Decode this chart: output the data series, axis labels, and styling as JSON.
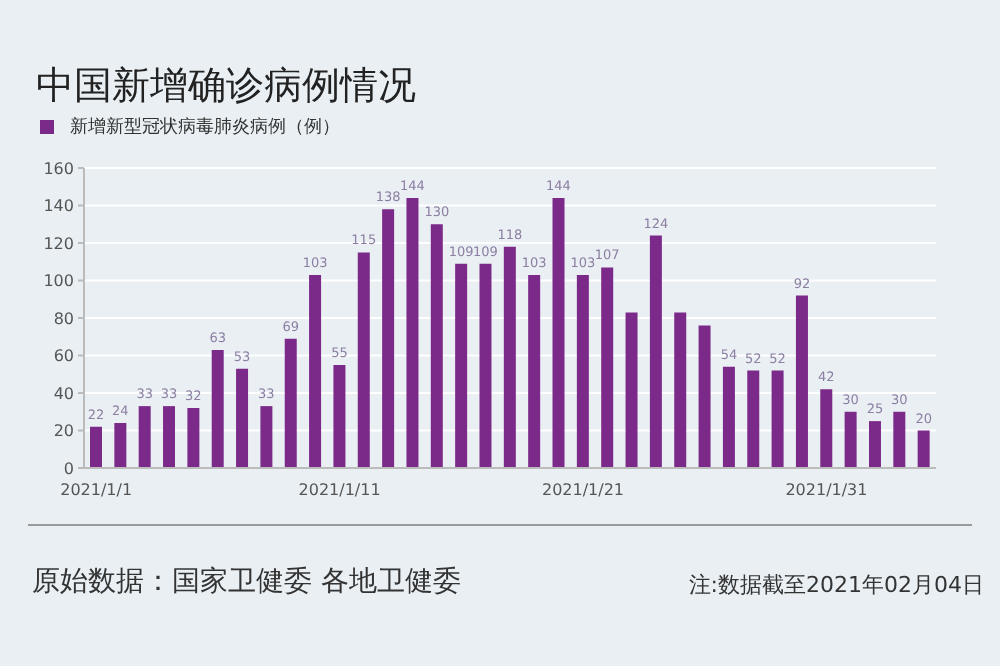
{
  "chart_data": {
    "type": "bar",
    "title": "中国新增确诊病例情况",
    "categories": [
      "2021/1/1",
      null,
      null,
      null,
      null,
      null,
      null,
      null,
      null,
      null,
      "2021/1/11",
      null,
      null,
      null,
      null,
      null,
      null,
      null,
      null,
      null,
      "2021/1/21",
      null,
      null,
      null,
      null,
      null,
      null,
      null,
      null,
      null,
      "2021/1/31",
      null,
      null,
      null,
      null
    ],
    "series": [
      {
        "name": "新增新型冠状病毒肺炎病例（例）",
        "color": "#7b2a8a",
        "values": [
          22,
          24,
          33,
          33,
          32,
          63,
          53,
          33,
          69,
          103,
          55,
          115,
          138,
          144,
          130,
          109,
          109,
          118,
          103,
          144,
          103,
          107,
          83,
          124,
          83,
          76,
          54,
          52,
          52,
          92,
          42,
          30,
          25,
          30,
          20
        ],
        "value_labels": [
          "22",
          "24",
          "33",
          "33",
          "32",
          "63",
          "53",
          "33",
          "69",
          "103",
          "55",
          "115",
          "138",
          "144",
          "130",
          "109",
          "109",
          "118",
          "103",
          "144",
          "103",
          "107",
          null,
          "124",
          null,
          null,
          "54",
          "52",
          "52",
          "92",
          "42",
          "30",
          "25",
          "30",
          "20"
        ]
      }
    ],
    "ylim": [
      0,
      160
    ],
    "yticks": [
      0,
      20,
      40,
      60,
      80,
      100,
      120,
      140,
      160
    ],
    "grid": "y",
    "legend": "top left",
    "annotations": [
      "原始数据：国家卫健委 各地卫健委",
      "注:数据截至2021年02月04日"
    ]
  }
}
